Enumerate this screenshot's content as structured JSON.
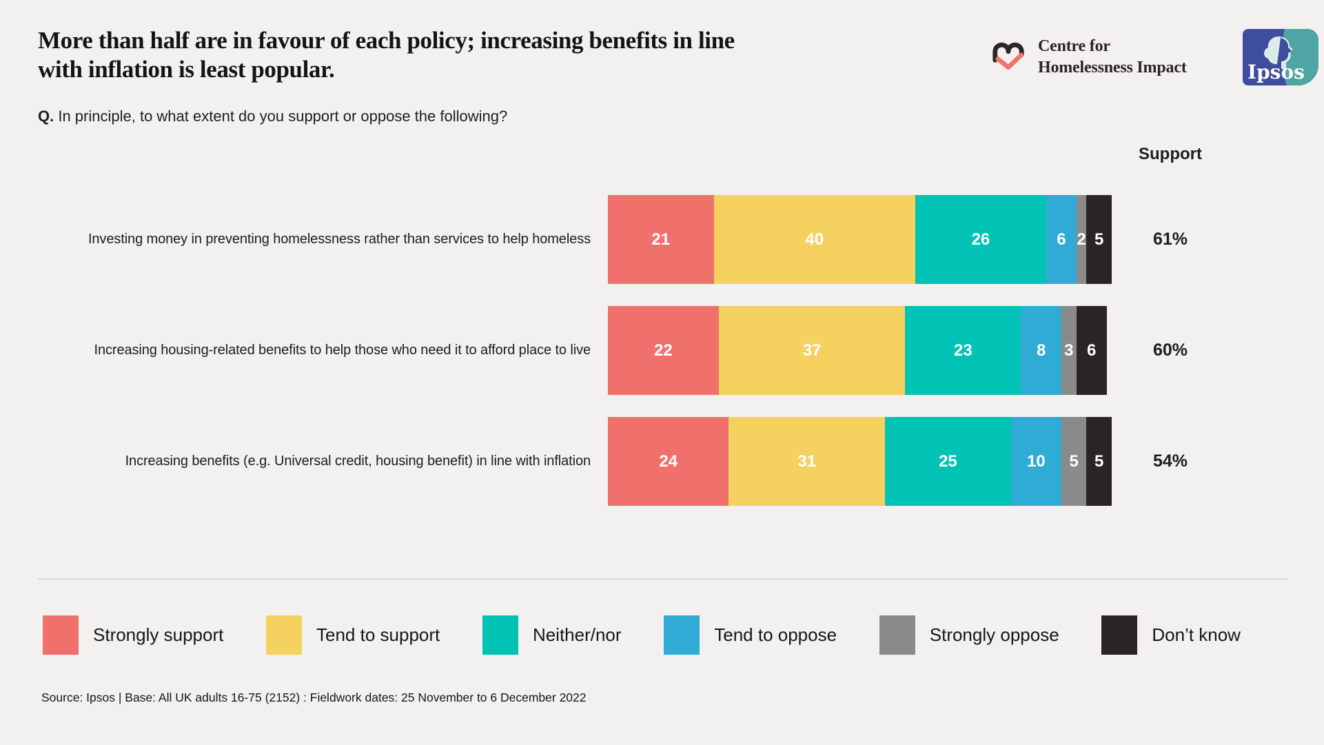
{
  "header": {
    "title_lines": [
      "More than half are in favour of each policy; increasing benefits in line",
      "with inflation is least popular."
    ],
    "question_prefix": "Q.",
    "question_text": " In principle, to what extent do you support or oppose the following?",
    "org_name_line1": "Centre for",
    "org_name_line2": "Homelessness Impact",
    "ipsos_wordmark": "Ipsos"
  },
  "chart_data": {
    "type": "bar",
    "stacked": true,
    "orientation": "horizontal",
    "xlim": [
      0,
      100
    ],
    "grid": false,
    "support_column_header": "Support",
    "categories": [
      "Investing money in preventing homelessness rather than services to help homeless",
      "Increasing housing-related benefits to help those who need it to afford place to live",
      "Increasing benefits (e.g. Universal credit, housing benefit) in line with inflation"
    ],
    "series": [
      {
        "name": "Strongly support",
        "color": "#F0716B",
        "values": [
          21,
          22,
          24
        ]
      },
      {
        "name": "Tend to support",
        "color": "#F5D160",
        "values": [
          40,
          37,
          31
        ]
      },
      {
        "name": "Neither/nor",
        "color": "#00C3B6",
        "values": [
          26,
          23,
          25
        ]
      },
      {
        "name": "Tend to oppose",
        "color": "#2FABD5",
        "values": [
          6,
          8,
          10
        ]
      },
      {
        "name": "Strongly oppose",
        "color": "#8A8A8A",
        "values": [
          2,
          3,
          5
        ]
      },
      {
        "name": "Don’t know",
        "color": "#2B2427",
        "values": [
          5,
          6,
          5
        ]
      }
    ],
    "support_totals": [
      "61%",
      "60%",
      "54%"
    ],
    "value_label_color": "#ffffff"
  },
  "footer": {
    "source": "Source: Ipsos | Base: All UK adults 16-75 (2152) : Fieldwork dates: 25 November to 6 December 2022"
  },
  "colors": {
    "background": "#F2F1EF",
    "heart_dark": "#2A2526",
    "heart_coral": "#F0736C",
    "ipsos_blue": "#3E4D9E",
    "ipsos_teal": "#4EA5A3"
  }
}
